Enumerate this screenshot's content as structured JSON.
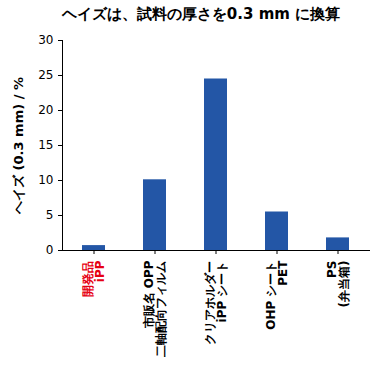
{
  "chart_data": {
    "type": "bar",
    "title": "ヘイズは、試料の厚さを0.3 mm に換算",
    "y_label": "ヘイズ (0.3 mm) / %",
    "categories": [
      "開発品\niPP",
      "市販名 OPP\n二軸配向フィルム",
      "クリアホルダー\niPP シート",
      "OHP シート\nPET",
      "PS\n(弁当箱)"
    ],
    "values": [
      0.7,
      10.1,
      24.5,
      5.5,
      1.8
    ],
    "color": "#2356a6",
    "ylim": [
      0,
      30
    ],
    "yticks": [
      0,
      5,
      10,
      15,
      20,
      25,
      30
    ],
    "grid": false
  }
}
